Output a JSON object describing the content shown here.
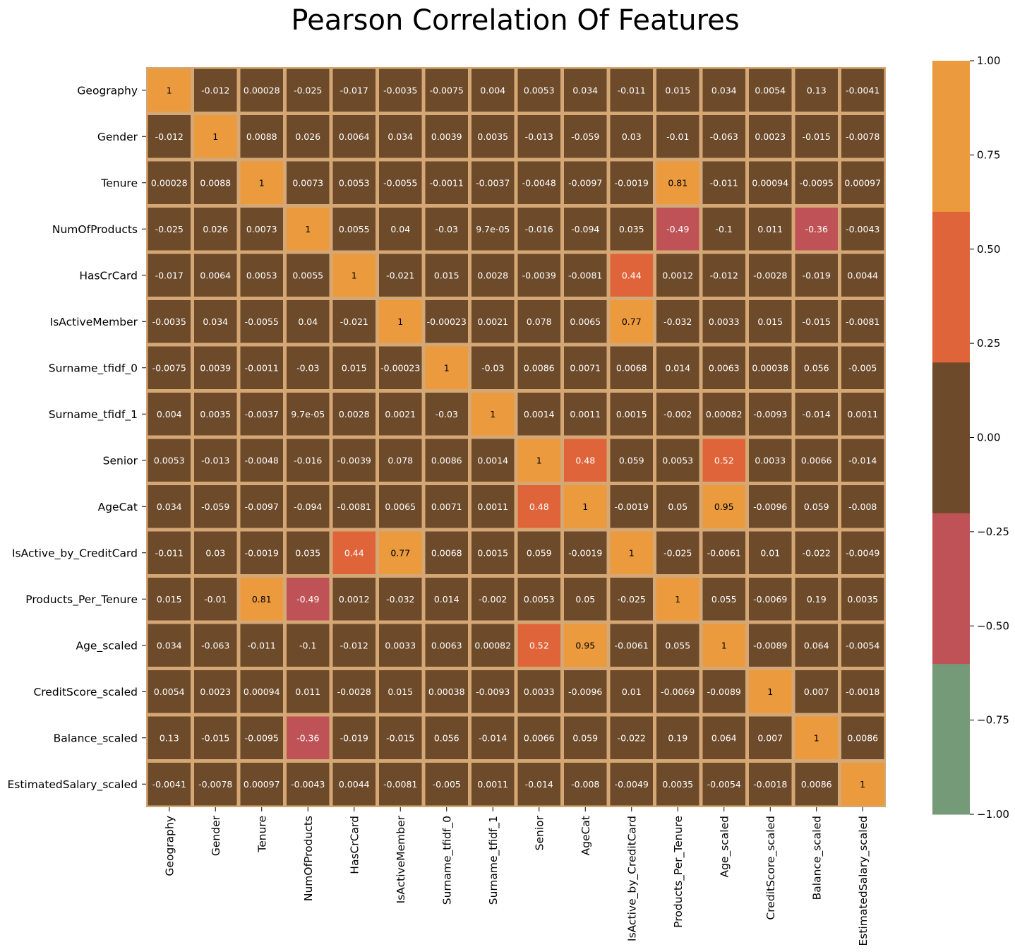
{
  "chart_data": {
    "type": "heatmap",
    "title": "Pearson Correlation Of Features",
    "xlabel": "",
    "ylabel": "",
    "labels": [
      "Geography",
      "Gender",
      "Tenure",
      "NumOfProducts",
      "HasCrCard",
      "IsActiveMember",
      "Surname_tfidf_0",
      "Surname_tfidf_1",
      "Senior",
      "AgeCat",
      "IsActive_by_CreditCard",
      "Products_Per_Tenure",
      "Age_scaled",
      "CreditScore_scaled",
      "Balance_scaled",
      "EstimatedSalary_scaled"
    ],
    "matrix": [
      [
        "1",
        "-0.012",
        "0.00028",
        "-0.025",
        "-0.017",
        "-0.0035",
        "-0.0075",
        "0.004",
        "0.0053",
        "0.034",
        "-0.011",
        "0.015",
        "0.034",
        "0.0054",
        "0.13",
        "-0.0041"
      ],
      [
        "-0.012",
        "1",
        "0.0088",
        "0.026",
        "0.0064",
        "0.034",
        "0.0039",
        "0.0035",
        "-0.013",
        "-0.059",
        "0.03",
        "-0.01",
        "-0.063",
        "0.0023",
        "-0.015",
        "-0.0078"
      ],
      [
        "0.00028",
        "0.0088",
        "1",
        "0.0073",
        "0.0053",
        "-0.0055",
        "-0.0011",
        "-0.0037",
        "-0.0048",
        "-0.0097",
        "-0.0019",
        "0.81",
        "-0.011",
        "0.00094",
        "-0.0095",
        "0.00097"
      ],
      [
        "-0.025",
        "0.026",
        "0.0073",
        "1",
        "0.0055",
        "0.04",
        "-0.03",
        "9.7e-05",
        "-0.016",
        "-0.094",
        "0.035",
        "-0.49",
        "-0.1",
        "0.011",
        "-0.36",
        "-0.0043"
      ],
      [
        "-0.017",
        "0.0064",
        "0.0053",
        "0.0055",
        "1",
        "-0.021",
        "0.015",
        "0.0028",
        "-0.0039",
        "-0.0081",
        "0.44",
        "0.0012",
        "-0.012",
        "-0.0028",
        "-0.019",
        "0.0044"
      ],
      [
        "-0.0035",
        "0.034",
        "-0.0055",
        "0.04",
        "-0.021",
        "1",
        "-0.00023",
        "0.0021",
        "0.078",
        "0.0065",
        "0.77",
        "-0.032",
        "0.0033",
        "0.015",
        "-0.015",
        "-0.0081"
      ],
      [
        "-0.0075",
        "0.0039",
        "-0.0011",
        "-0.03",
        "0.015",
        "-0.00023",
        "1",
        "-0.03",
        "0.0086",
        "0.0071",
        "0.0068",
        "0.014",
        "0.0063",
        "0.00038",
        "0.056",
        "-0.005"
      ],
      [
        "0.004",
        "0.0035",
        "-0.0037",
        "9.7e-05",
        "0.0028",
        "0.0021",
        "-0.03",
        "1",
        "0.0014",
        "0.0011",
        "0.0015",
        "-0.002",
        "0.00082",
        "-0.0093",
        "-0.014",
        "0.0011"
      ],
      [
        "0.0053",
        "-0.013",
        "-0.0048",
        "-0.016",
        "-0.0039",
        "0.078",
        "0.0086",
        "0.0014",
        "1",
        "0.48",
        "0.059",
        "0.0053",
        "0.52",
        "0.0033",
        "0.0066",
        "-0.014"
      ],
      [
        "0.034",
        "-0.059",
        "-0.0097",
        "-0.094",
        "-0.0081",
        "0.0065",
        "0.0071",
        "0.0011",
        "0.48",
        "1",
        "-0.0019",
        "0.05",
        "0.95",
        "-0.0096",
        "0.059",
        "-0.008"
      ],
      [
        "-0.011",
        "0.03",
        "-0.0019",
        "0.035",
        "0.44",
        "0.77",
        "0.0068",
        "0.0015",
        "0.059",
        "-0.0019",
        "1",
        "-0.025",
        "-0.0061",
        "0.01",
        "-0.022",
        "-0.0049"
      ],
      [
        "0.015",
        "-0.01",
        "0.81",
        "-0.49",
        "0.0012",
        "-0.032",
        "0.014",
        "-0.002",
        "0.0053",
        "0.05",
        "-0.025",
        "1",
        "0.055",
        "-0.0069",
        "0.19",
        "0.0035"
      ],
      [
        "0.034",
        "-0.063",
        "-0.011",
        "-0.1",
        "-0.012",
        "0.0033",
        "0.0063",
        "0.00082",
        "0.52",
        "0.95",
        "-0.0061",
        "0.055",
        "1",
        "-0.0089",
        "0.064",
        "-0.0054"
      ],
      [
        "0.0054",
        "0.0023",
        "0.00094",
        "0.011",
        "-0.0028",
        "0.015",
        "0.00038",
        "-0.0093",
        "0.0033",
        "-0.0096",
        "0.01",
        "-0.0069",
        "-0.0089",
        "1",
        "0.007",
        "-0.0018"
      ],
      [
        "0.13",
        "-0.015",
        "-0.0095",
        "-0.36",
        "-0.019",
        "-0.015",
        "0.056",
        "-0.014",
        "0.0066",
        "0.059",
        "-0.022",
        "0.19",
        "0.064",
        "0.007",
        "1",
        "0.0086"
      ],
      [
        "-0.0041",
        "-0.0078",
        "0.00097",
        "-0.0043",
        "0.0044",
        "-0.0081",
        "-0.005",
        "0.0011",
        "-0.014",
        "-0.008",
        "-0.0049",
        "0.0035",
        "-0.0054",
        "-0.0018",
        "0.0086",
        "1"
      ]
    ],
    "colorbar": {
      "range": [
        -1.0,
        1.0
      ],
      "ticks": [
        "1.00",
        "0.75",
        "0.50",
        "0.25",
        "0.00",
        "−0.25",
        "−0.50",
        "−0.75",
        "−1.00"
      ],
      "tick_values": [
        1.0,
        0.75,
        0.5,
        0.25,
        0.0,
        -0.25,
        -0.5,
        -0.75,
        -1.0
      ],
      "colors": [
        "#749a78",
        "#bf5257",
        "#6d4a2a",
        "#e0643a",
        "#eb9a3e"
      ]
    },
    "cell_border_color": "#d4a775",
    "cell_text_color_light": "#ffffff",
    "cell_text_color_dark": "#000000",
    "grid": false
  }
}
